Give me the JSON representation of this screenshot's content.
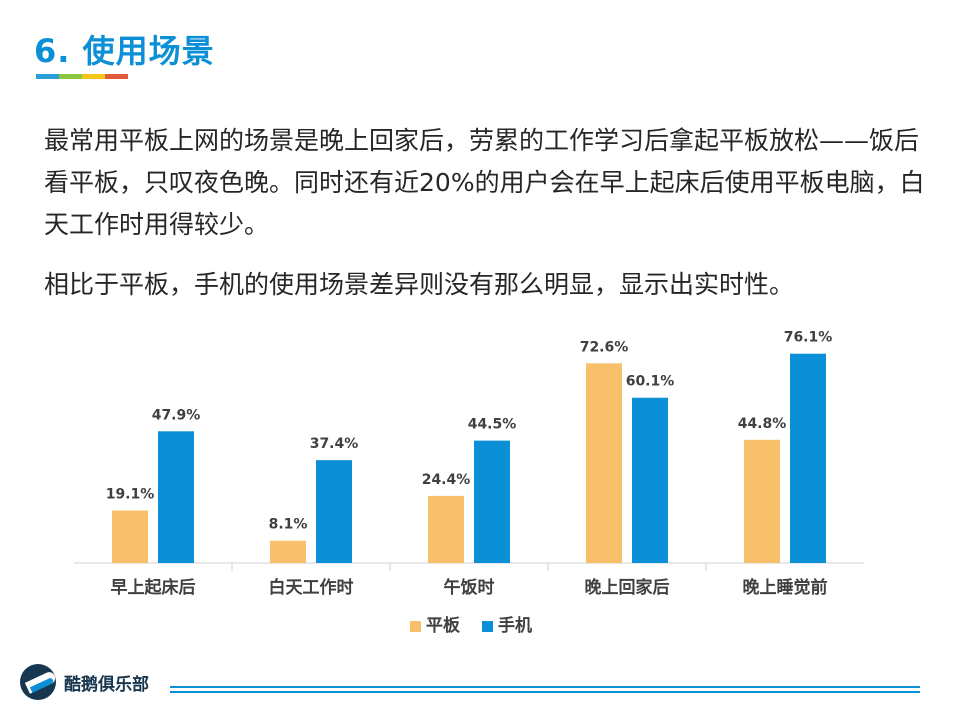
{
  "slide": {
    "title": "6. 使用场景",
    "underline_colors": [
      "#2a9fd8",
      "#8cc63f",
      "#f5c518",
      "#e05b3c"
    ]
  },
  "paragraphs": [
    "最常用平板上网的场景是晚上回家后，劳累的工作学习后拿起平板放松——饭后看平板，只叹夜色晚。同时还有近20%的用户会在早上起床后使用平板电脑，白天工作时用得较少。",
    "相比于平板，手机的使用场景差异则没有那么明显，显示出实时性。"
  ],
  "chart_data": {
    "type": "bar",
    "categories": [
      "早上起床后",
      "白天工作时",
      "午饭时",
      "晚上回家后",
      "晚上睡觉前"
    ],
    "series": [
      {
        "name": "平板",
        "color": "#f8c06b",
        "values": [
          19.1,
          8.1,
          24.4,
          72.6,
          44.8
        ]
      },
      {
        "name": "手机",
        "color": "#0b8fd6",
        "values": [
          47.9,
          37.4,
          44.5,
          60.1,
          76.1
        ]
      }
    ],
    "value_suffix": "%",
    "ylim": [
      0,
      80
    ],
    "grid": false,
    "legend": "bottom-center"
  },
  "footer": {
    "logo_text": "酷鹅俱乐部",
    "logo_icon": "penguin-logo-icon",
    "line_color": "#0b8fd6"
  }
}
